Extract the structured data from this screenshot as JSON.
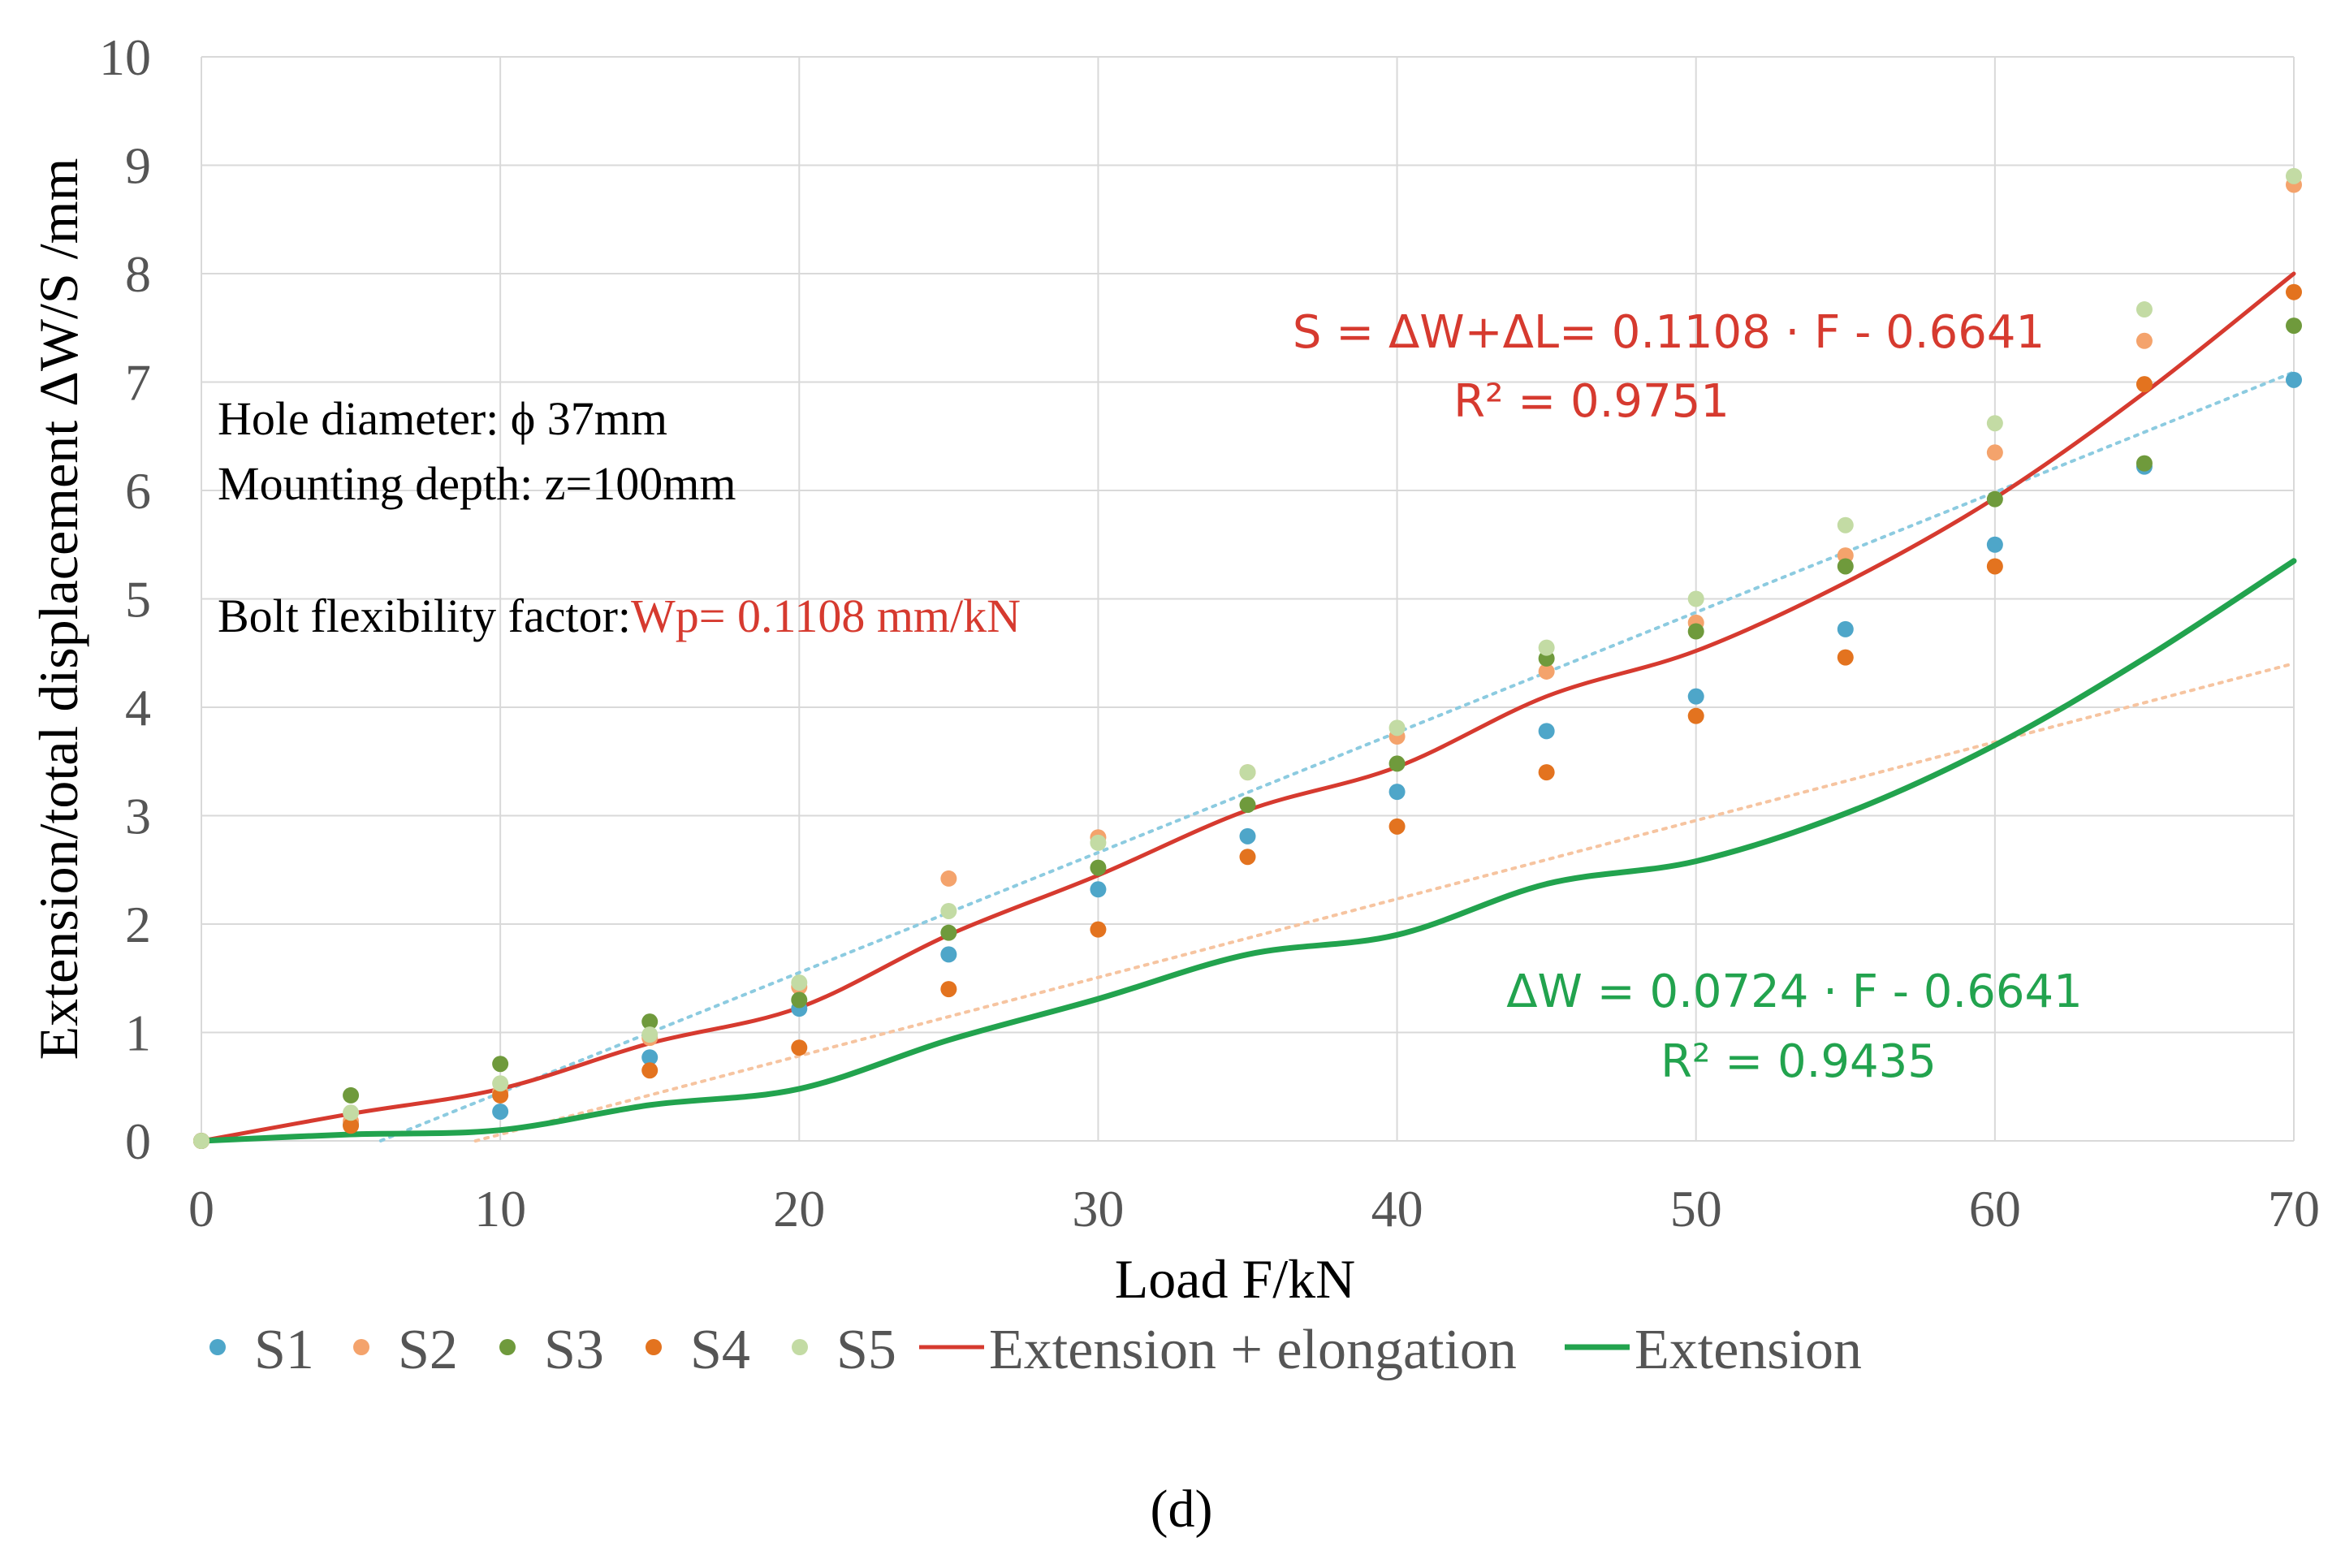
{
  "chart_data": {
    "type": "scatter",
    "xlabel": "Load F/kN",
    "ylabel": "Extension/total displacement ΔW/S /mm",
    "xlim": [
      0,
      70
    ],
    "ylim": [
      0,
      10
    ],
    "xticks": [
      0,
      10,
      20,
      30,
      40,
      50,
      60,
      70
    ],
    "yticks": [
      0,
      1,
      2,
      3,
      4,
      5,
      6,
      7,
      8,
      9,
      10
    ],
    "grid": true,
    "x": [
      0,
      5,
      10,
      15,
      20,
      25,
      30,
      35,
      40,
      45,
      50,
      55,
      60,
      65,
      70
    ],
    "series": [
      {
        "name": "S1",
        "kind": "points",
        "color": "#4ea6c9",
        "values": [
          0,
          0.15,
          0.27,
          0.77,
          1.22,
          1.72,
          2.32,
          2.81,
          3.22,
          3.78,
          4.1,
          4.72,
          5.5,
          6.22,
          7.02
        ]
      },
      {
        "name": "S2",
        "kind": "points",
        "color": "#f4a36c",
        "values": [
          0,
          0.18,
          0.45,
          0.95,
          1.42,
          2.42,
          2.8,
          3.4,
          3.73,
          4.33,
          4.78,
          5.4,
          6.35,
          7.38,
          8.82
        ]
      },
      {
        "name": "S3",
        "kind": "points",
        "color": "#6f9a3c",
        "values": [
          0,
          0.42,
          0.71,
          1.1,
          1.3,
          1.92,
          2.52,
          3.1,
          3.48,
          4.45,
          4.7,
          5.3,
          5.92,
          6.25,
          7.52
        ]
      },
      {
        "name": "S4",
        "kind": "points",
        "color": "#e3731f",
        "values": [
          0,
          0.14,
          0.42,
          0.65,
          0.86,
          1.4,
          1.95,
          2.62,
          2.9,
          3.4,
          3.92,
          4.46,
          5.3,
          6.98,
          7.83
        ]
      },
      {
        "name": "S5",
        "kind": "points",
        "color": "#c3dba4",
        "values": [
          0,
          0.26,
          0.53,
          0.98,
          1.46,
          2.12,
          2.75,
          3.4,
          3.81,
          4.55,
          5.0,
          5.68,
          6.62,
          7.67,
          8.9
        ]
      },
      {
        "name": "Extension + elongation",
        "kind": "line",
        "color": "#d63a2f",
        "values": [
          0,
          0.25,
          0.48,
          0.9,
          1.23,
          1.9,
          2.45,
          3.05,
          3.45,
          4.1,
          4.52,
          5.15,
          5.93,
          6.9,
          8.0
        ]
      },
      {
        "name": "Extension",
        "kind": "line",
        "color": "#22a34e",
        "values": [
          0,
          0.06,
          0.1,
          0.33,
          0.48,
          0.93,
          1.31,
          1.72,
          1.9,
          2.37,
          2.58,
          3.02,
          3.65,
          4.45,
          5.35
        ]
      }
    ],
    "trendlines": [
      {
        "name": "S trend",
        "color": "#8ccbe0",
        "slope": 0.1108,
        "intercept": -0.6641,
        "x_range": [
          6,
          70
        ]
      },
      {
        "name": "ΔW trend",
        "color": "#f6c4a0",
        "slope": 0.0724,
        "intercept": -0.6641,
        "x_range": [
          9.17,
          70
        ]
      }
    ],
    "annotations": {
      "s_equation": "S = ΔW+ΔL= 0.1108 · F - 0.6641",
      "s_r2": "R² = 0.9751",
      "w_equation": "ΔW = 0.0724 · F - 0.6641",
      "w_r2": "R² = 0.9435",
      "hole_diameter": "Hole diameter: ϕ 37mm",
      "mounting_depth": "Mounting depth: z=100mm",
      "flex_label": "Bolt flexibility factor:",
      "flex_value": "Wp= 0.1108 mm/kN"
    },
    "caption": "(d)"
  },
  "colors": {
    "red": "#d63a2f",
    "green": "#22a34e",
    "grid": "#d9d9d9"
  }
}
